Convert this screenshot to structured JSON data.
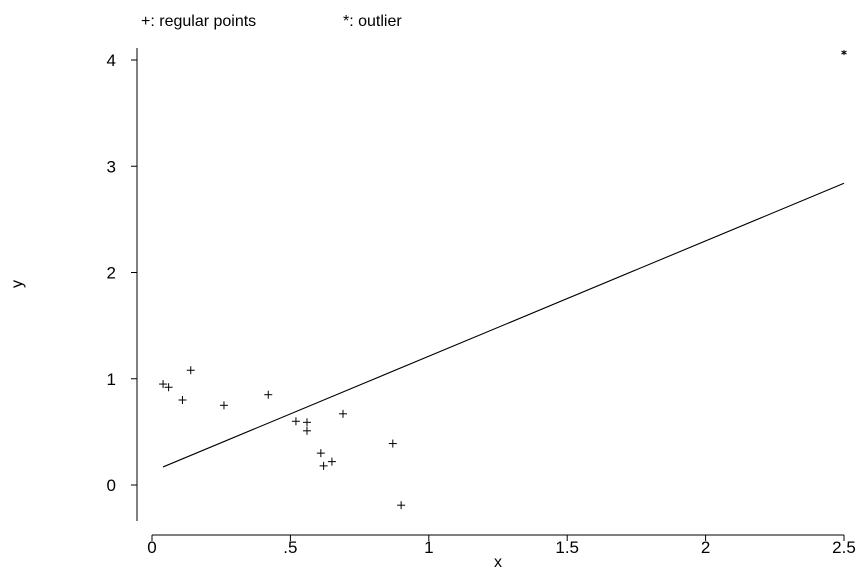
{
  "legend": {
    "regular": "+: regular points",
    "outlier": "*: outlier"
  },
  "chart_data": {
    "type": "scatter",
    "title": "",
    "xlabel": "x",
    "ylabel": "y",
    "xlim": [
      0,
      2.5
    ],
    "ylim": [
      -0.2,
      4.1
    ],
    "xticks": [
      0,
      0.5,
      1,
      1.5,
      2,
      2.5
    ],
    "xtick_labels": [
      "0",
      ".5",
      "1",
      "1.5",
      "2",
      "2.5"
    ],
    "yticks": [
      0,
      1,
      2,
      3,
      4
    ],
    "ytick_labels": [
      "0",
      "1",
      "2",
      "3",
      "4"
    ],
    "grid": false,
    "legend_position": "top-left",
    "series": [
      {
        "name": "regular points",
        "marker": "+",
        "points": [
          {
            "x": 0.04,
            "y": 0.95
          },
          {
            "x": 0.06,
            "y": 0.92
          },
          {
            "x": 0.11,
            "y": 0.8
          },
          {
            "x": 0.14,
            "y": 1.08
          },
          {
            "x": 0.26,
            "y": 0.75
          },
          {
            "x": 0.42,
            "y": 0.85
          },
          {
            "x": 0.52,
            "y": 0.6
          },
          {
            "x": 0.56,
            "y": 0.59
          },
          {
            "x": 0.56,
            "y": 0.51
          },
          {
            "x": 0.61,
            "y": 0.3
          },
          {
            "x": 0.62,
            "y": 0.18
          },
          {
            "x": 0.65,
            "y": 0.22
          },
          {
            "x": 0.69,
            "y": 0.67
          },
          {
            "x": 0.87,
            "y": 0.39
          },
          {
            "x": 0.9,
            "y": -0.19
          }
        ]
      },
      {
        "name": "outlier",
        "marker": "*",
        "points": [
          {
            "x": 2.5,
            "y": 4.07
          }
        ]
      }
    ],
    "fit_line": {
      "type": "line",
      "points": [
        {
          "x": 0.04,
          "y": 0.17
        },
        {
          "x": 2.5,
          "y": 2.84
        }
      ]
    }
  }
}
